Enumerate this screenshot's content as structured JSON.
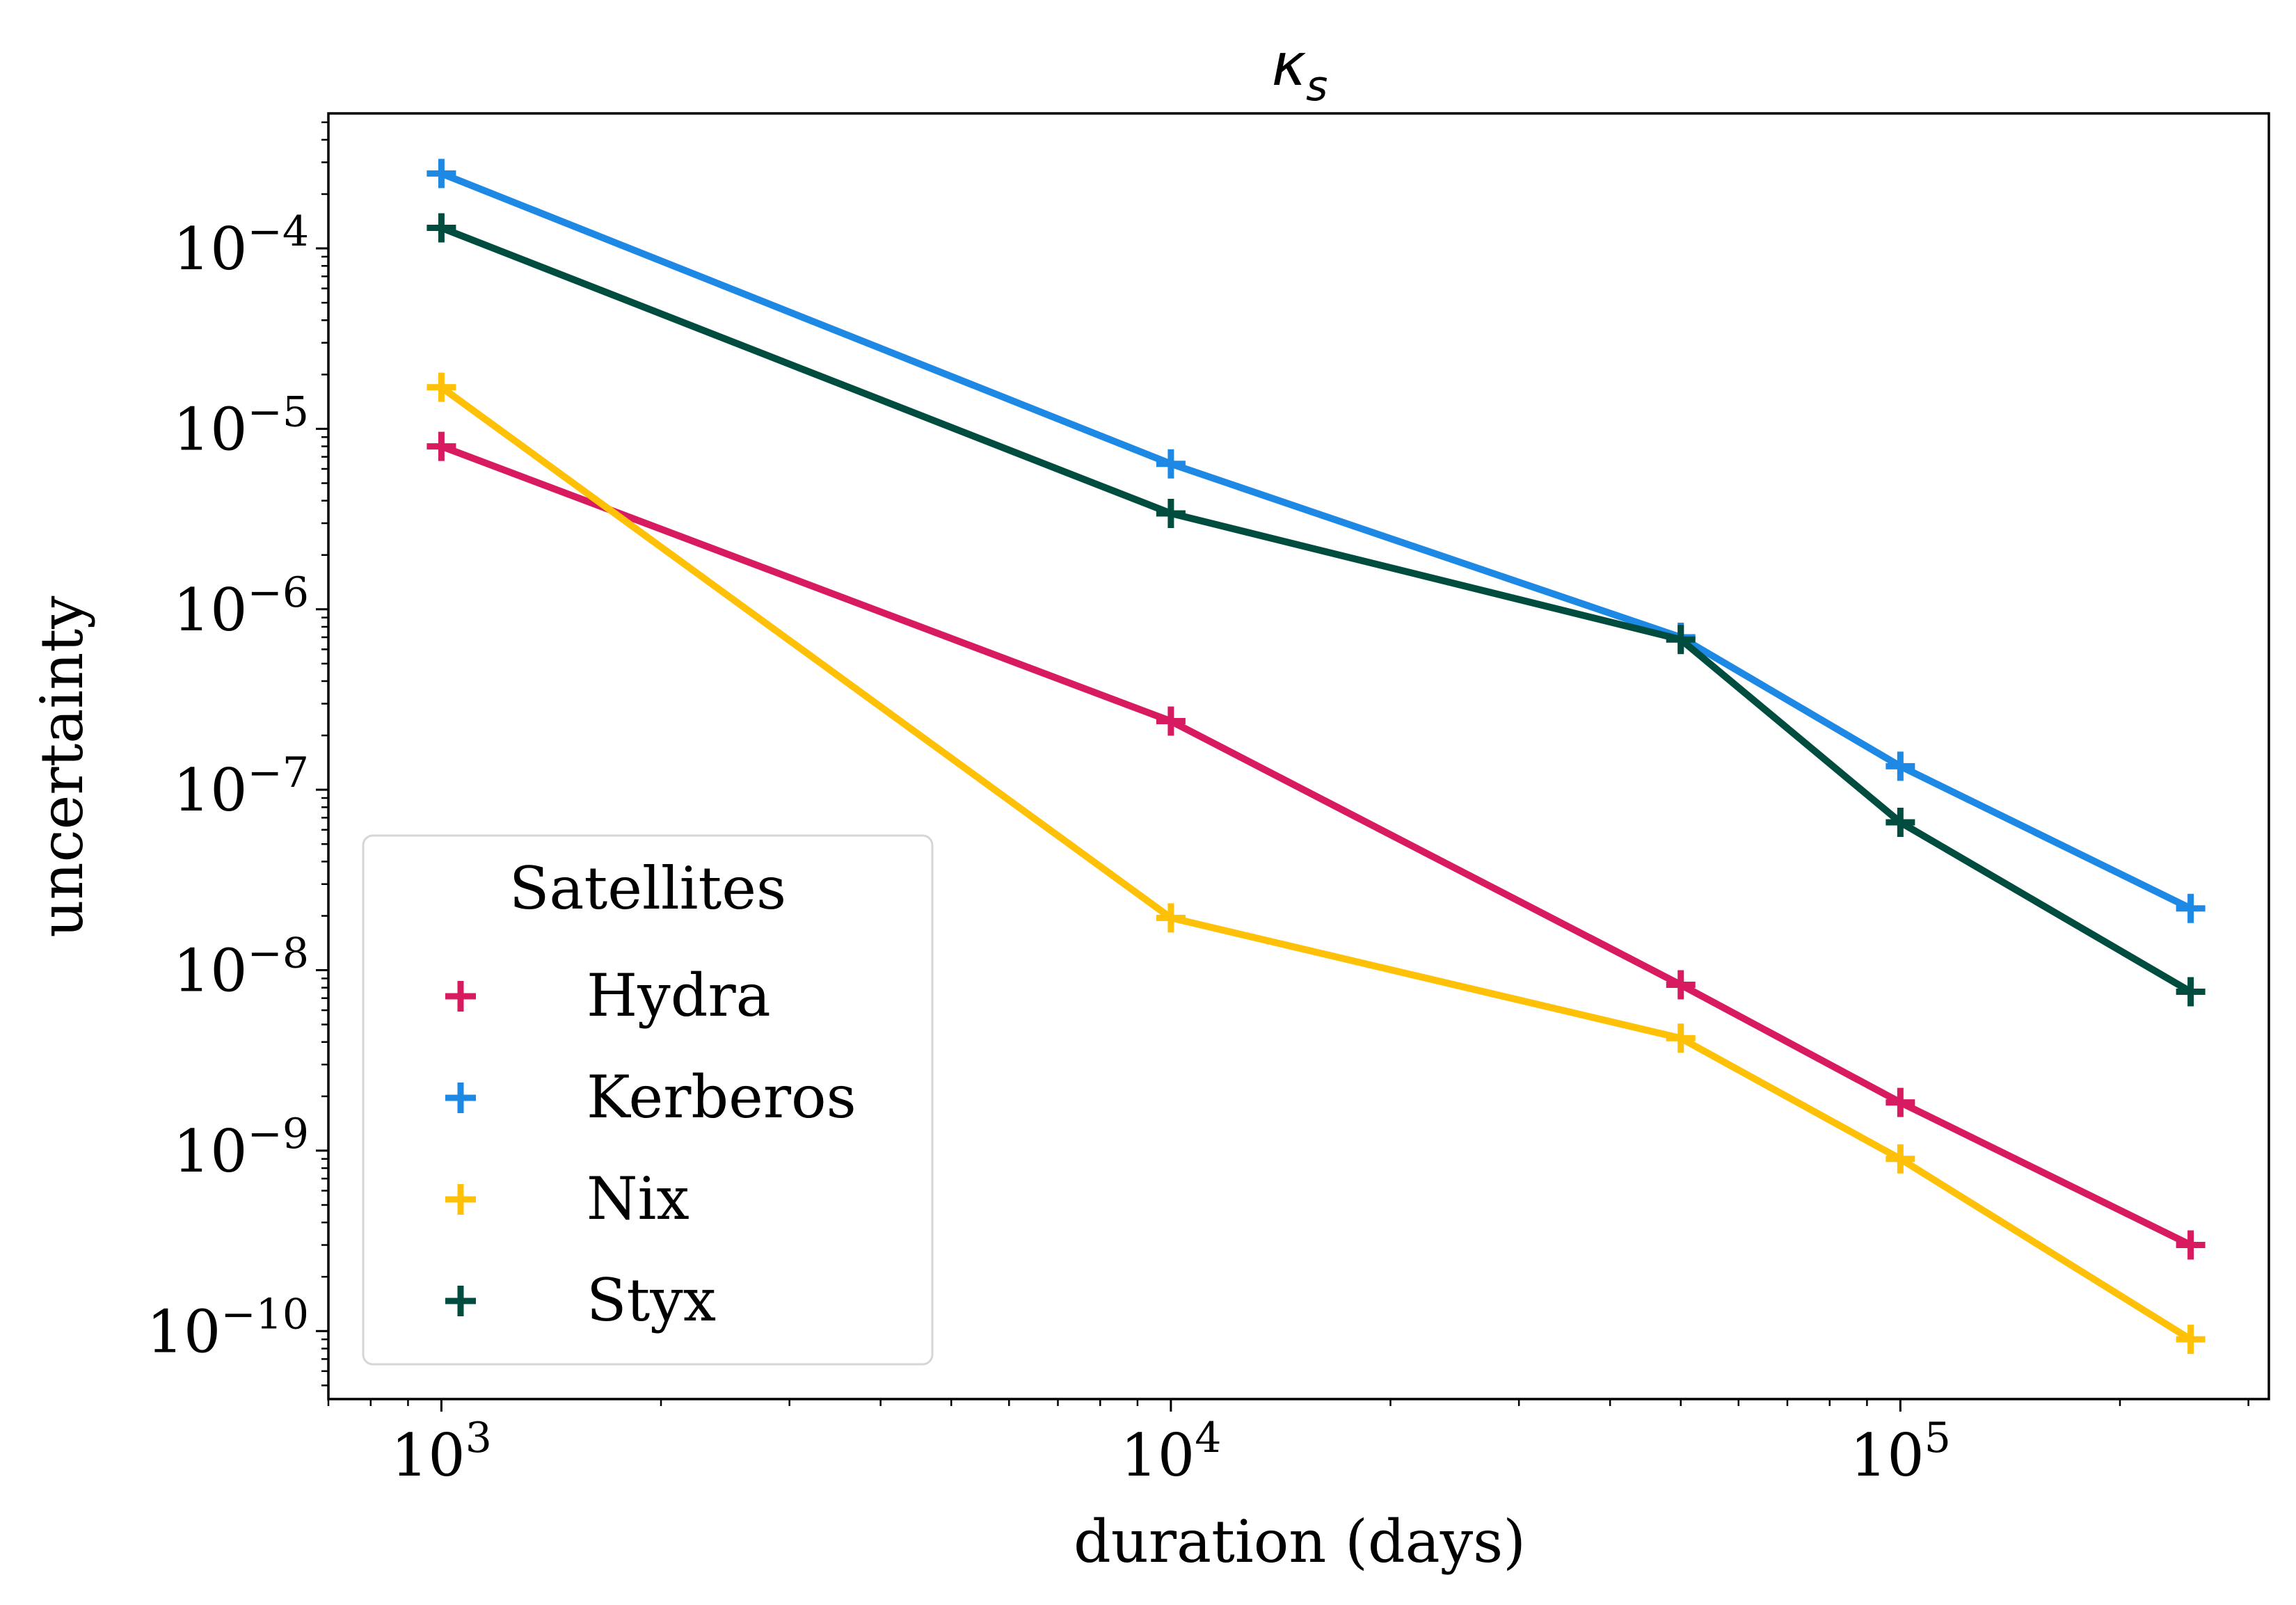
{
  "chart_data": {
    "type": "line",
    "title": "κ",
    "title_subscript": "s",
    "xlabel": "duration (days)",
    "ylabel": "uncertainty",
    "xscale": "log",
    "yscale": "log",
    "xlim": [
      700,
      320000
    ],
    "ylim": [
      4.2e-11,
      0.00056
    ],
    "x_ticks": [
      {
        "value": 1000,
        "base": "10",
        "exp": "3"
      },
      {
        "value": 10000,
        "base": "10",
        "exp": "4"
      },
      {
        "value": 100000,
        "base": "10",
        "exp": "5"
      }
    ],
    "y_ticks": [
      {
        "value": 0.0001,
        "base": "10",
        "exp": "−4"
      },
      {
        "value": 1e-05,
        "base": "10",
        "exp": "−5"
      },
      {
        "value": 1e-06,
        "base": "10",
        "exp": "−6"
      },
      {
        "value": 1e-07,
        "base": "10",
        "exp": "−7"
      },
      {
        "value": 1e-08,
        "base": "10",
        "exp": "−8"
      },
      {
        "value": 1e-09,
        "base": "10",
        "exp": "−9"
      },
      {
        "value": 1e-10,
        "base": "10",
        "exp": "−10"
      }
    ],
    "grid": false,
    "marker": "plus",
    "x": [
      1000,
      10000,
      50000,
      100000,
      250000
    ],
    "series": [
      {
        "name": "Hydra",
        "color": "#d81b60",
        "values": [
          8e-06,
          2.4e-07,
          8.3e-09,
          1.85e-09,
          3e-10
        ]
      },
      {
        "name": "Kerberos",
        "color": "#1e88e5",
        "values": [
          0.00026,
          6.4e-06,
          7e-07,
          1.35e-07,
          2.2e-08
        ]
      },
      {
        "name": "Nix",
        "color": "#ffc107",
        "values": [
          1.7e-05,
          1.95e-08,
          4.2e-09,
          9e-10,
          9e-11
        ]
      },
      {
        "name": "Styx",
        "color": "#004d40",
        "values": [
          0.00013,
          3.4e-06,
          6.8e-07,
          6.6e-08,
          7.6e-09
        ]
      }
    ],
    "legend": {
      "title": "Satellites",
      "placement": "lower-left"
    }
  }
}
